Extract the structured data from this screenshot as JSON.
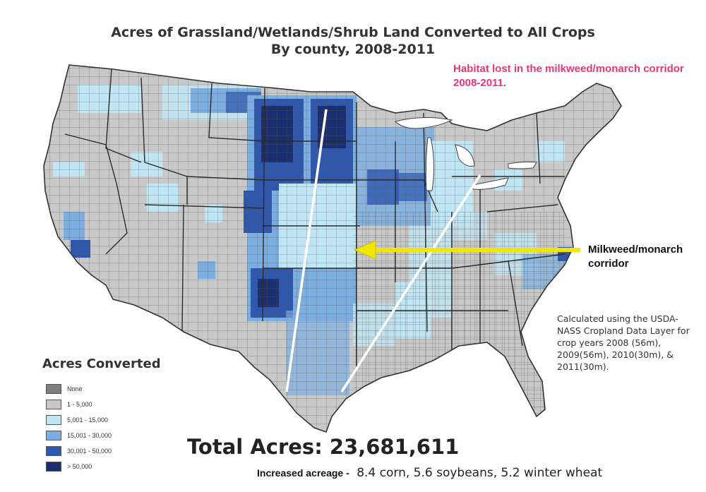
{
  "title": {
    "line1": "Acres of Grassland/Wetlands/Shrub Land Converted to All Crops",
    "line2": "By county, 2008-2011"
  },
  "annotations": {
    "habitat": "Habitat lost in the milkweed/monarch corridor 2008-2011.",
    "corridor": "Milkweed/monarch corridor",
    "calculation": "Calculated using the USDA-NASS Cropland Data Layer for crop years 2008 (56m), 2009(56m), 2010(30m), & 2011(30m)."
  },
  "legend": {
    "title": "Acres Converted",
    "items": [
      {
        "label": "None",
        "color": "#7f7f7f"
      },
      {
        "label": "1 - 5,000",
        "color": "#c6c6c6"
      },
      {
        "label": "5,001 - 15,000",
        "color": "#bfe6f5"
      },
      {
        "label": "15,001 - 30,000",
        "color": "#7aaee0"
      },
      {
        "label": "30,001 - 50,000",
        "color": "#2e58b0"
      },
      {
        "label": "> 50,000",
        "color": "#1b2f70"
      }
    ]
  },
  "summary": {
    "total": "Total Acres: 23,681,611",
    "increased_lead": "Increased acreage -",
    "increased_detail": "8.4 corn, 5.6 soybeans, 5.2 winter wheat"
  },
  "colors": {
    "annotation_pink": "#e8357a",
    "arrow": "#f2e600",
    "corridor_lines": "#ffffff",
    "county_lines": "#3a3a3a"
  }
}
